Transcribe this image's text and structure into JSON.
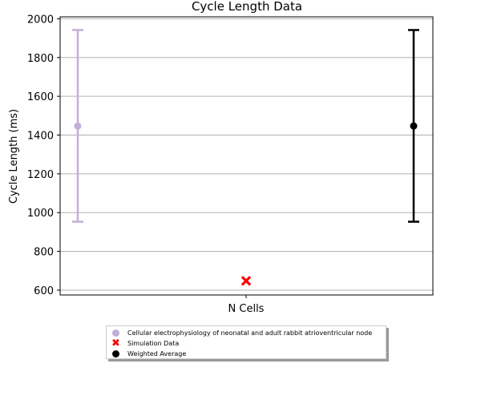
{
  "chart_data": {
    "type": "scatter",
    "title": "Cycle Length Data",
    "xlabel": "",
    "ylabel": "Cycle Length (ms)",
    "categories": [
      "N Cells"
    ],
    "ylim": [
      575,
      2010
    ],
    "yticks": [
      600,
      800,
      1000,
      1200,
      1400,
      1600,
      1800,
      2000
    ],
    "grid": "horizontal",
    "legend_placement": "bottom-center",
    "series": [
      {
        "name": "Cellular electrophysiology of neonatal and adult rabbit atrioventricular node",
        "marker": "circle",
        "color": "#c3aed8",
        "points": [
          {
            "x": "left",
            "y": 1447,
            "err_low": 953,
            "err_high": 1942
          }
        ]
      },
      {
        "name": "Simulation Data",
        "marker": "x",
        "color": "#ff0000",
        "points": [
          {
            "x": "N Cells",
            "y": 648
          }
        ]
      },
      {
        "name": "Weighted Average",
        "marker": "circle",
        "color": "#000000",
        "points": [
          {
            "x": "right",
            "y": 1447,
            "err_low": 953,
            "err_high": 1942
          }
        ]
      }
    ]
  }
}
